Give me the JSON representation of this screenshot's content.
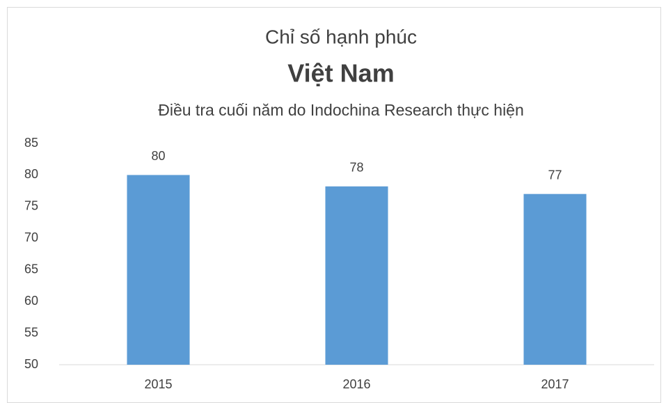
{
  "chart_data": {
    "type": "bar",
    "title": [
      "Chỉ số hạnh phúc",
      "Việt Nam"
    ],
    "subtitle": "Điều tra cuối năm do Indochina Research thực hiện",
    "categories": [
      "2015",
      "2016",
      "2017"
    ],
    "values": [
      80,
      78.2,
      77
    ],
    "value_labels": [
      "80",
      "78",
      "77"
    ],
    "color": "#5b9bd5",
    "ylim": [
      50,
      85
    ],
    "yticks": [
      50,
      55,
      60,
      65,
      70,
      75,
      80,
      85
    ],
    "grid": false
  }
}
